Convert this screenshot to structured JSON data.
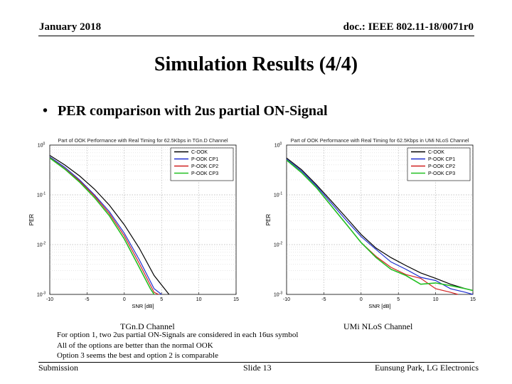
{
  "header": {
    "date": "January 2018",
    "doc_id": "doc.: IEEE 802.11-18/0071r0"
  },
  "title": "Simulation Results (4/4)",
  "bullet": "PER comparison with 2us partial ON-Signal",
  "captions": [
    "TGn.D Channel",
    "UMi NLoS Channel"
  ],
  "notes": [
    "For option 1,  two 2us partial ON-Signals are considered in each 16us symbol",
    "All of the options are better than the normal OOK",
    "Option 3 seems the best and option 2 is comparable"
  ],
  "footer": {
    "left": "Submission",
    "center": "Slide 13",
    "right": "Eunsung Park, LG Electronics"
  },
  "chart_data": [
    {
      "type": "line",
      "title": "Part of OOK Performance with Real Timing for 62.5Kbps in TGn.D Channel",
      "xlabel": "SNR [dB]",
      "ylabel": "PER",
      "xlim": [
        -10,
        15
      ],
      "ylim": [
        0.001,
        1
      ],
      "yscale": "log",
      "xticks": [
        "-10",
        "-5",
        "0",
        "5",
        "10",
        "15"
      ],
      "yticks": [
        "10^0",
        "10^-1",
        "10^-2",
        "10^-3"
      ],
      "grid": true,
      "legend": "top-right",
      "series": [
        {
          "name": "C-OOK",
          "color": "#000000",
          "x": [
            -10,
            -8,
            -6,
            -4,
            -2,
            0,
            2,
            4,
            6
          ],
          "y": [
            0.62,
            0.4,
            0.24,
            0.13,
            0.062,
            0.025,
            0.0085,
            0.0024,
            0.001
          ]
        },
        {
          "name": "P-OOK CP1",
          "color": "#1f2fd0",
          "x": [
            -10,
            -8,
            -6,
            -4,
            -2,
            0,
            2,
            4,
            5
          ],
          "y": [
            0.58,
            0.36,
            0.2,
            0.1,
            0.046,
            0.017,
            0.005,
            0.0013,
            0.001
          ]
        },
        {
          "name": "P-OOK CP2",
          "color": "#d02020",
          "x": [
            -10,
            -8,
            -6,
            -4,
            -2,
            0,
            2,
            4,
            4.6
          ],
          "y": [
            0.56,
            0.34,
            0.19,
            0.095,
            0.042,
            0.015,
            0.0042,
            0.0011,
            0.001
          ]
        },
        {
          "name": "P-OOK CP3",
          "color": "#22c022",
          "x": [
            -10,
            -8,
            -6,
            -4,
            -2,
            0,
            2,
            3.5,
            4
          ],
          "y": [
            0.55,
            0.33,
            0.18,
            0.088,
            0.038,
            0.013,
            0.0035,
            0.0013,
            0.001
          ]
        }
      ]
    },
    {
      "type": "line",
      "title": "Part of OOK Performance with Real Timing for 62.5Kbps in UMi NLoS Channel",
      "xlabel": "SNR [dB]",
      "ylabel": "PER",
      "xlim": [
        -10,
        15
      ],
      "ylim": [
        0.001,
        1
      ],
      "yscale": "log",
      "xticks": [
        "-10",
        "-5",
        "0",
        "5",
        "10",
        "15"
      ],
      "yticks": [
        "10^0",
        "10^-1",
        "10^-2",
        "10^-3"
      ],
      "grid": true,
      "legend": "top-right",
      "series": [
        {
          "name": "C-OOK",
          "color": "#000000",
          "x": [
            -10,
            -8,
            -6,
            -4,
            -2,
            0,
            2,
            4,
            6,
            8,
            10,
            12,
            14,
            15
          ],
          "y": [
            0.55,
            0.32,
            0.16,
            0.075,
            0.035,
            0.016,
            0.0085,
            0.0055,
            0.0038,
            0.0027,
            0.0021,
            0.0016,
            0.0013,
            0.0012
          ]
        },
        {
          "name": "P-OOK CP1",
          "color": "#1f2fd0",
          "x": [
            -10,
            -8,
            -6,
            -4,
            -2,
            0,
            2,
            4,
            6,
            8,
            10,
            12,
            14,
            15
          ],
          "y": [
            0.52,
            0.3,
            0.15,
            0.068,
            0.031,
            0.0145,
            0.008,
            0.0045,
            0.0032,
            0.0022,
            0.0019,
            0.0013,
            0.0011,
            0.001
          ]
        },
        {
          "name": "P-OOK CP2",
          "color": "#d02020",
          "x": [
            -10,
            -8,
            -6,
            -4,
            -2,
            0,
            2,
            4,
            6,
            8,
            10,
            12,
            13
          ],
          "y": [
            0.5,
            0.28,
            0.14,
            0.06,
            0.026,
            0.011,
            0.0058,
            0.0035,
            0.0025,
            0.0021,
            0.0013,
            0.0011,
            0.001
          ]
        },
        {
          "name": "P-OOK CP3",
          "color": "#22c022",
          "x": [
            -10,
            -8,
            -6,
            -4,
            -2,
            0,
            2,
            4,
            6,
            8,
            10,
            12,
            14,
            15
          ],
          "y": [
            0.5,
            0.28,
            0.14,
            0.06,
            0.026,
            0.011,
            0.0055,
            0.0032,
            0.0024,
            0.0016,
            0.0017,
            0.0015,
            0.0013,
            0.0012
          ]
        }
      ]
    }
  ]
}
